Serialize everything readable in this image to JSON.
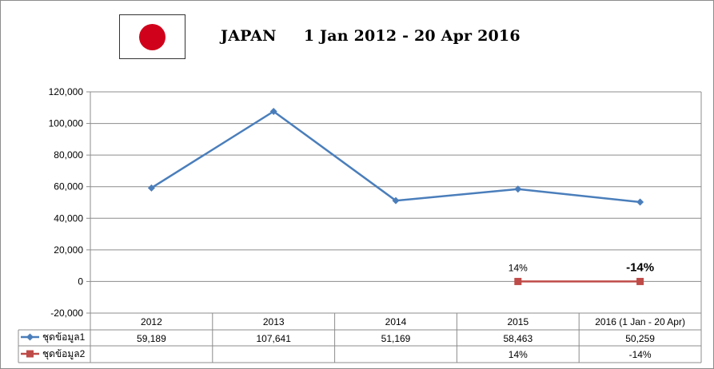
{
  "page_title": "JAPAN     1 Jan 2012 - 20 Apr 2016",
  "flag": {
    "icon": "japan-flag-icon",
    "disc_color": "#d0021b"
  },
  "chart_data": {
    "type": "line",
    "categories": [
      "2012",
      "2013",
      "2014",
      "2015",
      "2016 (1 Jan - 20 Apr)"
    ],
    "yticks": [
      "120,000",
      "100,000",
      "80,000",
      "60,000",
      "40,000",
      "20,000",
      "0",
      "-20,000"
    ],
    "ylim": [
      -20000,
      120000
    ],
    "grid": true,
    "legend_placement": "data-table-below",
    "series": [
      {
        "name": "ชุดข้อมูล1",
        "color": "#4a7ebb",
        "marker": "diamond",
        "values": [
          59189,
          107641,
          51169,
          58463,
          50259
        ],
        "table_values": [
          "59,189",
          "107,641",
          "51,169",
          "58,463",
          "50,259"
        ]
      },
      {
        "name": "ชุดข้อมูล2",
        "color": "#be4b48",
        "marker": "square",
        "values": [
          null,
          null,
          null,
          0,
          0
        ],
        "table_values": [
          "",
          "",
          "",
          "14%",
          "-14%"
        ],
        "data_labels": [
          null,
          null,
          null,
          "14%",
          "-14%"
        ]
      }
    ]
  }
}
